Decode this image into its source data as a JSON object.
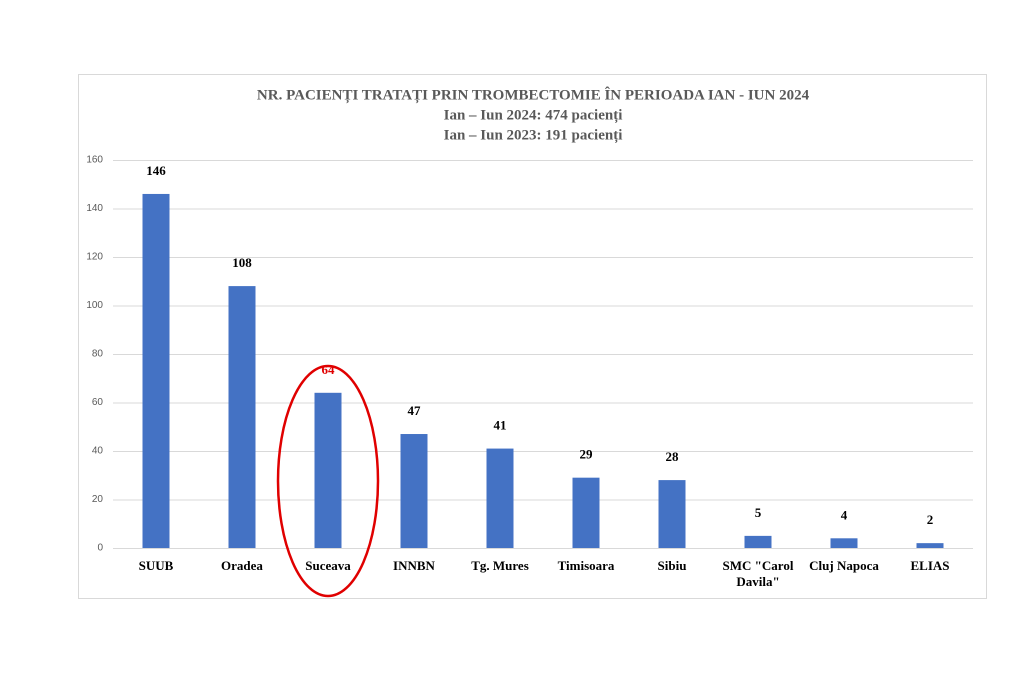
{
  "chart_data": {
    "type": "bar",
    "title": "NR. PACIENȚI TRATAȚI PRIN TROMBECTOMIE ÎN PERIOADA IAN - IUN 2024",
    "subtitle": [
      "Ian – Iun 2024: 474 pacienți",
      "Ian – Iun 2023: 191 pacienți"
    ],
    "categories": [
      "SUUB",
      "Oradea",
      "Suceava",
      "INNBN",
      "Tg. Mures",
      "Timisoara",
      "Sibiu",
      "SMC \"Carol Davila\"",
      "Cluj Napoca",
      "ELIAS"
    ],
    "values": [
      146,
      108,
      64,
      47,
      41,
      29,
      28,
      5,
      4,
      2
    ],
    "color": "#4472c4",
    "value_label_colors": [
      "#000000",
      "#000000",
      "#e00000",
      "#000000",
      "#000000",
      "#000000",
      "#000000",
      "#000000",
      "#000000",
      "#000000"
    ],
    "ylim": [
      0,
      160
    ],
    "yticks": [
      0,
      20,
      40,
      60,
      80,
      100,
      120,
      140,
      160
    ],
    "grid": true
  }
}
